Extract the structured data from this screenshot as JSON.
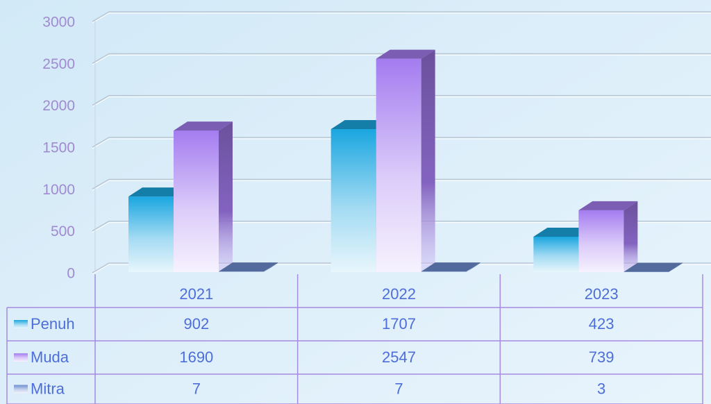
{
  "chart_data": {
    "type": "bar3d",
    "categories": [
      "2021",
      "2022",
      "2023"
    ],
    "series": [
      {
        "name": "Penuh",
        "color": "#1aa6e0",
        "values": [
          902,
          1707,
          423
        ]
      },
      {
        "name": "Muda",
        "color": "#a47cf0",
        "values": [
          1690,
          2547,
          739
        ]
      },
      {
        "name": "Mitra",
        "color": "#6f8fd0",
        "values": [
          7,
          7,
          3
        ]
      }
    ],
    "ylim": [
      0,
      3000
    ],
    "yticks": [
      0,
      500,
      1000,
      1500,
      2000,
      2500,
      3000
    ],
    "grid": true,
    "data_table": true
  }
}
